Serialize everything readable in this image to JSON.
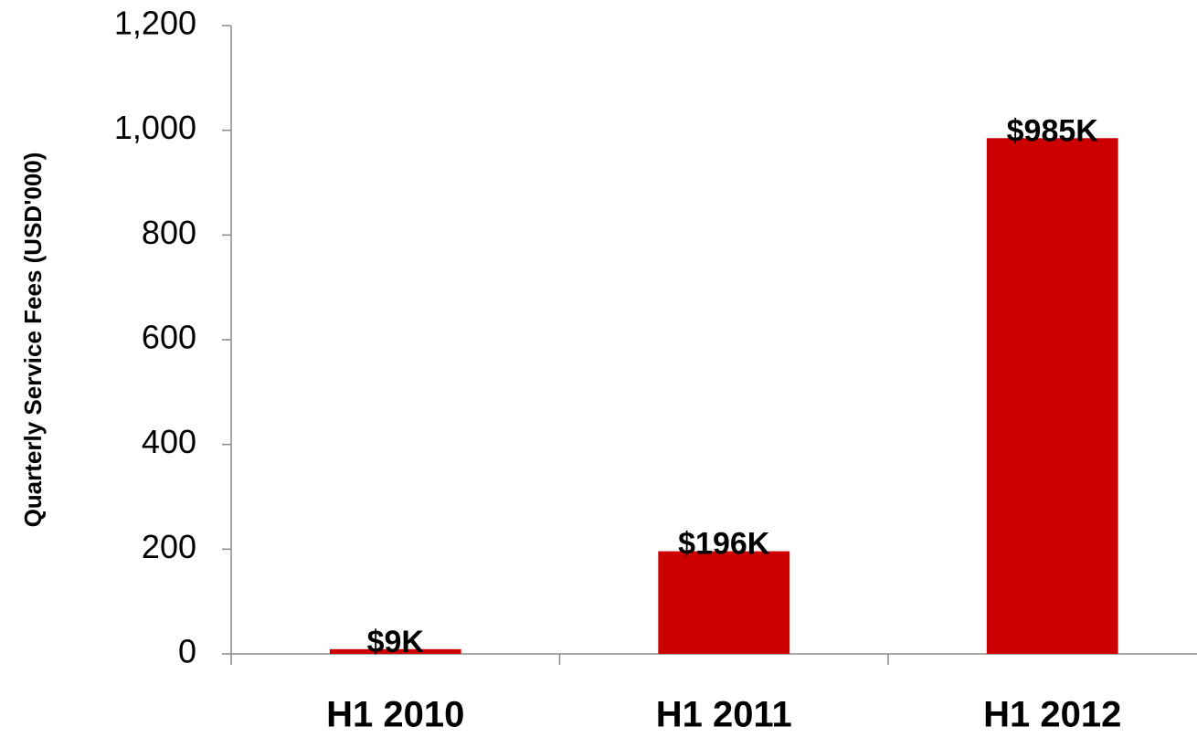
{
  "chart_data": {
    "type": "bar",
    "y_axis_label": "Quarterly Service Fees (USD'000)",
    "categories": [
      "H1 2010",
      "H1 2011",
      "H1 2012"
    ],
    "values": [
      9,
      196,
      985
    ],
    "value_labels": [
      "$9K",
      "$196K",
      "$985K"
    ],
    "color": "#cc0000",
    "ylim": [
      0,
      1200
    ],
    "yticks": [
      0,
      200,
      400,
      600,
      800,
      {
        "value": 1000,
        "label": "1,000"
      },
      {
        "value": 1200,
        "label": "1,200"
      }
    ],
    "grid": false
  }
}
